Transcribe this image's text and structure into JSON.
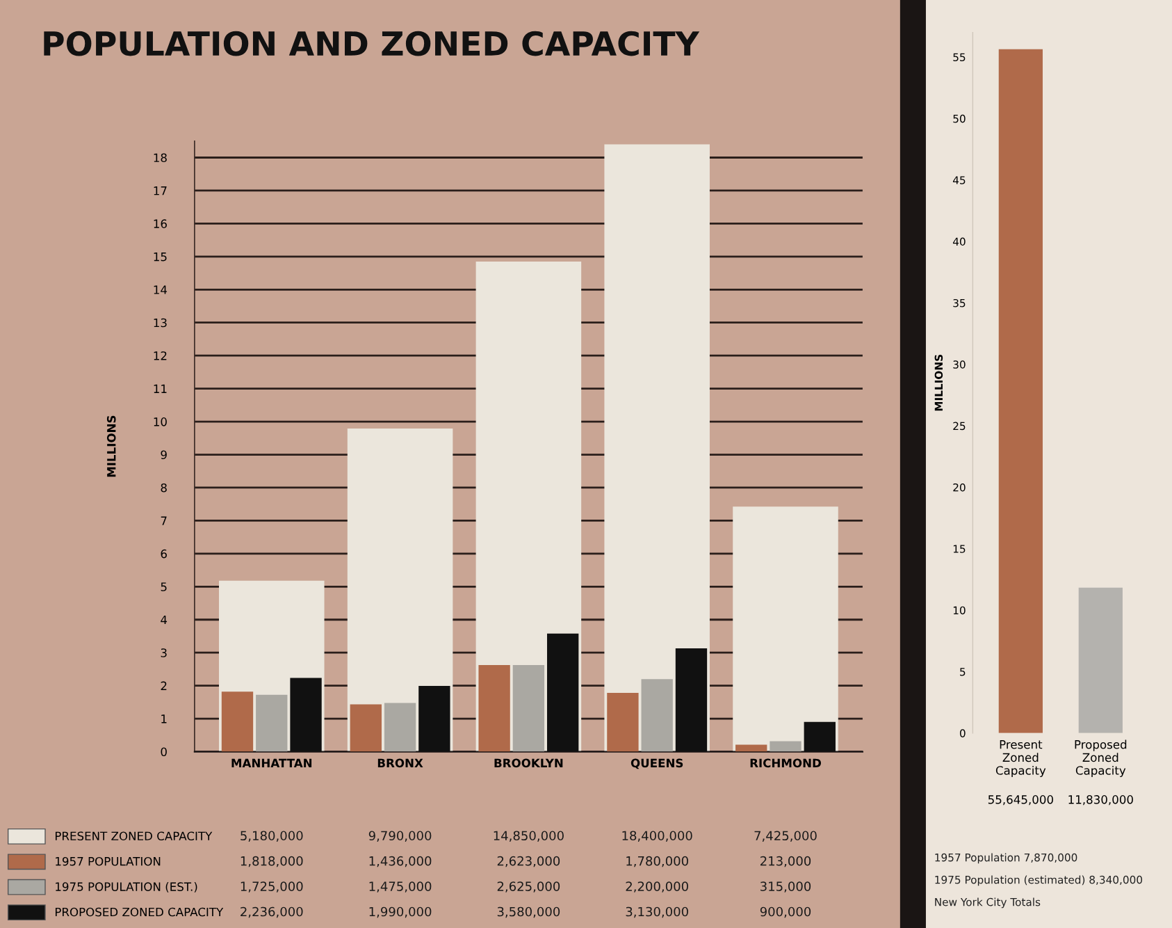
{
  "chart_data": [
    {
      "type": "bar",
      "title": "POPULATION AND ZONED CAPACITY",
      "ylabel": "MILLIONS",
      "categories": [
        "MANHATTAN",
        "BRONX",
        "BROOKLYN",
        "QUEENS",
        "RICHMOND"
      ],
      "series": [
        {
          "name": "PRESENT ZONED CAPACITY",
          "color": "#ebe6dc",
          "values": [
            5.18,
            9.79,
            14.85,
            18.4,
            7.425
          ]
        },
        {
          "name": "1957 POPULATION",
          "color": "#b06a4a",
          "values": [
            1.818,
            1.436,
            2.623,
            1.78,
            0.213
          ]
        },
        {
          "name": "1975 POPULATION (EST.)",
          "color": "#aaa8a2",
          "values": [
            1.725,
            1.475,
            2.625,
            2.2,
            0.315
          ]
        },
        {
          "name": "PROPOSED ZONED CAPACITY",
          "color": "#111111",
          "values": [
            2.236,
            1.99,
            3.58,
            3.13,
            0.9
          ]
        }
      ],
      "ylim": [
        0,
        18.5
      ],
      "yticks": [
        0,
        1,
        2,
        3,
        4,
        5,
        6,
        7,
        8,
        9,
        10,
        11,
        12,
        13,
        14,
        15,
        16,
        17,
        18
      ],
      "grid": "y",
      "legend": "bottom left",
      "annotations": [
        "5,180,000",
        "9,790,000",
        "14,850,000",
        "18,400,000",
        "7,425,000",
        "1,818,000",
        "1,436,000",
        "2,623,000",
        "1,780,000",
        "213,000",
        "1,725,000",
        "1,475,000",
        "2,625,000",
        "2,200,000",
        "315,000",
        "2,236,000",
        "1,990,000",
        "3,580,000",
        "3,130,000",
        "900,000"
      ]
    },
    {
      "type": "bar",
      "ylabel": "MILLIONS",
      "categories": [
        "Present Zoned Capacity",
        "Proposed Zoned Capacity"
      ],
      "values": [
        55.645,
        11.83
      ],
      "colors": [
        "#b06a4a",
        "#b4b2ae"
      ],
      "ylim": [
        0,
        57
      ],
      "yticks": [
        0,
        5,
        10,
        15,
        20,
        25,
        30,
        35,
        40,
        45,
        50,
        55
      ],
      "annotations": [
        "55,645,000",
        "11,830,000",
        "1957 Population 7,870,000",
        "1975 Population (estimated) 8,340,000",
        "New York City Totals"
      ]
    }
  ]
}
